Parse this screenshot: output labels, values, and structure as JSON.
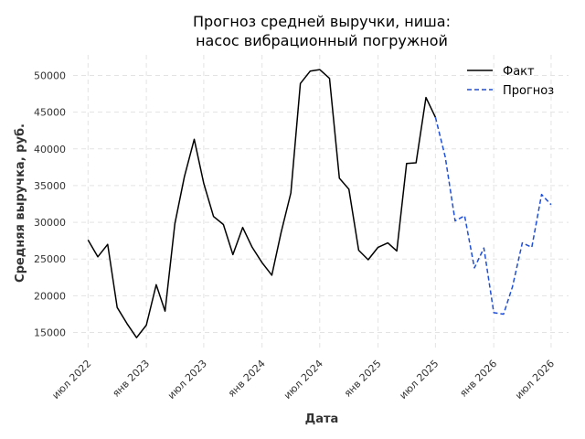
{
  "chart_data": {
    "type": "line",
    "title_lines": [
      "Прогноз средней выручки, ниша:",
      "насос вибрационный погружной"
    ],
    "xlabel": "Дата",
    "ylabel": "Средняя выручка, руб.",
    "x_tick_labels": [
      {
        "date": "2022-07-01",
        "label": "июл 2022"
      },
      {
        "date": "2023-01-01",
        "label": "янв 2023"
      },
      {
        "date": "2023-07-01",
        "label": "июл 2023"
      },
      {
        "date": "2024-01-01",
        "label": "янв 2024"
      },
      {
        "date": "2024-07-01",
        "label": "июл 2024"
      },
      {
        "date": "2025-01-01",
        "label": "янв 2025"
      },
      {
        "date": "2025-07-01",
        "label": "июл 2025"
      },
      {
        "date": "2026-01-01",
        "label": "янв 2026"
      },
      {
        "date": "2026-07-01",
        "label": "июл 2026"
      }
    ],
    "y_ticks": [
      15000,
      20000,
      25000,
      30000,
      35000,
      40000,
      45000,
      50000
    ],
    "xlim": [
      "2022-05-15",
      "2026-08-25"
    ],
    "ylim": [
      12700,
      52800
    ],
    "grid": true,
    "legend_position": "top-right",
    "series": [
      {
        "name": "Факт",
        "style": "solid",
        "color": "#000000",
        "points": [
          [
            "2022-07-01",
            27600
          ],
          [
            "2022-08-01",
            25300
          ],
          [
            "2022-09-01",
            27000
          ],
          [
            "2022-10-01",
            18400
          ],
          [
            "2022-11-01",
            16200
          ],
          [
            "2022-12-01",
            14300
          ],
          [
            "2023-01-01",
            16000
          ],
          [
            "2023-02-01",
            21500
          ],
          [
            "2023-03-01",
            17900
          ],
          [
            "2023-04-01",
            29800
          ],
          [
            "2023-05-01",
            36200
          ],
          [
            "2023-06-01",
            41300
          ],
          [
            "2023-07-01",
            35300
          ],
          [
            "2023-08-01",
            30800
          ],
          [
            "2023-09-01",
            29700
          ],
          [
            "2023-10-01",
            25600
          ],
          [
            "2023-11-01",
            29300
          ],
          [
            "2023-12-01",
            26600
          ],
          [
            "2024-01-01",
            24500
          ],
          [
            "2024-02-01",
            22800
          ],
          [
            "2024-03-01",
            28600
          ],
          [
            "2024-04-01",
            34000
          ],
          [
            "2024-05-01",
            48900
          ],
          [
            "2024-06-01",
            50600
          ],
          [
            "2024-07-01",
            50800
          ],
          [
            "2024-08-01",
            49600
          ],
          [
            "2024-09-01",
            36000
          ],
          [
            "2024-10-01",
            34500
          ],
          [
            "2024-11-01",
            26200
          ],
          [
            "2024-12-01",
            24900
          ],
          [
            "2025-01-01",
            26600
          ],
          [
            "2025-02-01",
            27200
          ],
          [
            "2025-03-01",
            26100
          ],
          [
            "2025-04-01",
            38000
          ],
          [
            "2025-05-01",
            38100
          ],
          [
            "2025-06-01",
            47000
          ],
          [
            "2025-07-01",
            44300
          ]
        ]
      },
      {
        "name": "Прогноз",
        "style": "dashed",
        "color": "#1f4fd6",
        "points": [
          [
            "2025-07-01",
            44300
          ],
          [
            "2025-08-01",
            38900
          ],
          [
            "2025-09-01",
            30200
          ],
          [
            "2025-10-01",
            30900
          ],
          [
            "2025-11-01",
            23800
          ],
          [
            "2025-12-01",
            26500
          ],
          [
            "2026-01-01",
            17700
          ],
          [
            "2026-02-01",
            17500
          ],
          [
            "2026-03-01",
            21200
          ],
          [
            "2026-04-01",
            27200
          ],
          [
            "2026-05-01",
            26600
          ],
          [
            "2026-06-01",
            33800
          ],
          [
            "2026-07-01",
            32400
          ]
        ]
      }
    ]
  }
}
